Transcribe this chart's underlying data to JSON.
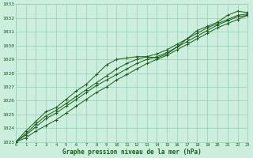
{
  "xlabel": "Graphe pression niveau de la mer (hPa)",
  "ylim": [
    1023,
    1033
  ],
  "xlim": [
    0,
    23
  ],
  "yticks": [
    1023,
    1024,
    1025,
    1026,
    1027,
    1028,
    1029,
    1030,
    1031,
    1032,
    1033
  ],
  "xticks": [
    0,
    1,
    2,
    3,
    4,
    5,
    6,
    7,
    8,
    9,
    10,
    11,
    12,
    13,
    14,
    15,
    16,
    17,
    18,
    19,
    20,
    21,
    22,
    23
  ],
  "background_color": "#cceedd",
  "grid_color": "#99ccbb",
  "line_color": "#1a5c1a",
  "line1": [
    1023.0,
    1023.8,
    1024.5,
    1025.2,
    1025.5,
    1026.1,
    1026.7,
    1027.2,
    1027.9,
    1028.6,
    1029.0,
    1029.1,
    1029.2,
    1029.2,
    1029.1,
    1029.4,
    1029.9,
    1030.5,
    1031.1,
    1031.4,
    1031.7,
    1032.2,
    1032.5,
    1032.4
  ],
  "line2": [
    1023.0,
    1023.6,
    1024.3,
    1024.9,
    1025.3,
    1025.8,
    1026.3,
    1026.8,
    1027.3,
    1027.8,
    1028.3,
    1028.7,
    1029.0,
    1029.2,
    1029.4,
    1029.7,
    1030.1,
    1030.5,
    1030.9,
    1031.3,
    1031.6,
    1031.9,
    1032.2,
    1032.3
  ],
  "line3": [
    1023.0,
    1023.5,
    1024.1,
    1024.7,
    1025.1,
    1025.6,
    1026.1,
    1026.6,
    1027.1,
    1027.5,
    1027.9,
    1028.3,
    1028.7,
    1029.0,
    1029.2,
    1029.5,
    1029.9,
    1030.3,
    1030.7,
    1031.1,
    1031.5,
    1031.8,
    1032.1,
    1032.2
  ],
  "line4": [
    1023.0,
    1023.3,
    1023.8,
    1024.2,
    1024.6,
    1025.1,
    1025.6,
    1026.1,
    1026.6,
    1027.0,
    1027.5,
    1027.9,
    1028.3,
    1028.7,
    1029.0,
    1029.3,
    1029.7,
    1030.1,
    1030.5,
    1030.9,
    1031.3,
    1031.6,
    1031.9,
    1032.2
  ]
}
